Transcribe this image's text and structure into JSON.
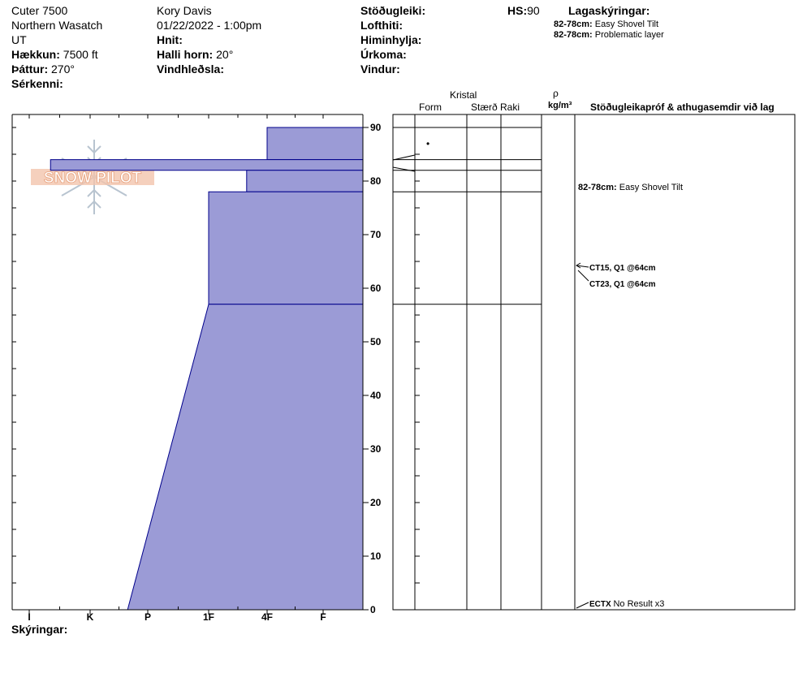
{
  "header": {
    "site": "Cuter 7500",
    "range": "Northern Wasatch",
    "state": "UT",
    "elevation_label": "Hækkun:",
    "elevation_value": "7500 ft",
    "aspect_label": "Þáttur:",
    "aspect_value": "270°",
    "features_label": "Sérkenni:",
    "observer": "Kory Davis",
    "datetime": "01/22/2022 - 1:00pm",
    "coords_label": "Hnit:",
    "slope_label": "Halli horn:",
    "slope_value": "20°",
    "wind_loading_label": "Vindhleðsla:",
    "stability_label": "Stöðugleiki:",
    "air_temp_label": "Lofthiti:",
    "sky_label": "Himinhylja:",
    "precip_label": "Úrkoma:",
    "wind_label": "Vindur:",
    "hs_label": "HS:",
    "hs_value": "90",
    "layer_notes_label": "Lagaskýringar:",
    "layer_notes": [
      {
        "range": "82-78cm:",
        "text": "Easy Shovel Tilt"
      },
      {
        "range": "82-78cm:",
        "text": "Problematic layer"
      }
    ]
  },
  "columns": {
    "crystal": "Kristal",
    "form": "Form",
    "size": "Stærð",
    "moisture": "Raki",
    "rho": "ρ",
    "density_unit": "kg/m³",
    "tests": "Stöðugleikapróf & athugasemdir við lag"
  },
  "footer": {
    "notes_label": "Skýringar:"
  },
  "watermark": "SNOW PILOT",
  "colors": {
    "fill": "#9b9bd6",
    "stroke": "#00008b",
    "watermark": "#e8a27e",
    "snowflake": "#b8c4d0"
  },
  "chart_data": {
    "type": "area",
    "title": "",
    "ylabel": "",
    "xlabel": "",
    "y_ticks": [
      0,
      10,
      20,
      30,
      40,
      50,
      60,
      70,
      80,
      90
    ],
    "ylim": [
      0,
      90
    ],
    "x_categories": [
      "I",
      "K",
      "P",
      "1F",
      "4F",
      "F"
    ],
    "grid": false,
    "hardness_profile": [
      {
        "top": 90,
        "bottom": 84,
        "hardness_index_top": 4.0,
        "hardness_index_bottom": 4.0
      },
      {
        "top": 84,
        "bottom": 82,
        "hardness_index_top": 0.35,
        "hardness_index_bottom": 0.35
      },
      {
        "top": 82,
        "bottom": 78,
        "hardness_index_top": 3.65,
        "hardness_index_bottom": 3.65
      },
      {
        "top": 78,
        "bottom": 57,
        "hardness_index_top": 3.0,
        "hardness_index_bottom": 3.0
      },
      {
        "top": 57,
        "bottom": 0,
        "hardness_index_top": 3.0,
        "hardness_index_bottom": 1.65
      }
    ],
    "layer_boundaries": [
      90,
      84,
      82,
      78,
      57
    ],
    "crystal_marks": [
      {
        "depth": 87,
        "symbol": "•"
      }
    ],
    "stability_tests": [
      {
        "depth": 80,
        "label_bold": "82-78cm:",
        "label": "Easy Shovel Tilt"
      },
      {
        "depth": 64,
        "label_bold": "CT15, Q1 @64cm",
        "label": ""
      },
      {
        "depth": 64,
        "label_bold": "CT23, Q1 @64cm",
        "label": ""
      },
      {
        "depth": 0,
        "label_bold": "ECTX",
        "label": "No Result x3"
      }
    ]
  }
}
